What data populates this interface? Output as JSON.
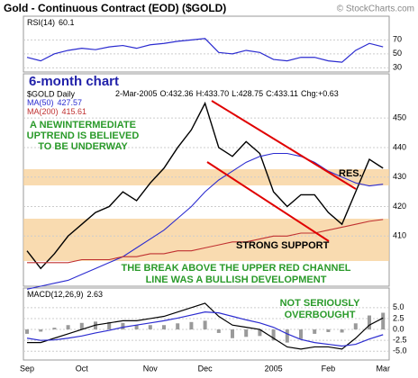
{
  "chart_data": {
    "type": "line",
    "title": "Gold - Continuous Contract (EOD) ($GOLD)",
    "watermark": "© StockCharts.com",
    "subtitle": "6-month chart",
    "categories": [
      "Sep",
      null,
      null,
      null,
      "Oct",
      null,
      null,
      null,
      null,
      "Nov",
      null,
      null,
      null,
      "Dec",
      null,
      null,
      null,
      null,
      "2005",
      null,
      null,
      null,
      "Feb",
      null,
      null,
      null,
      "Mar"
    ],
    "quote": [
      "2-Mar-2005",
      "O:432.36",
      "H:433.70",
      "L:428.75",
      "C:433.11",
      "Chg:+0.63"
    ],
    "price_panel": {
      "ylim": [
        393,
        465
      ],
      "yticks": [
        410,
        420,
        430,
        440,
        450
      ],
      "series": [
        {
          "name": "$GOLD Daily",
          "color": "#000000",
          "values": [
            405,
            399,
            404,
            410,
            414,
            418,
            420,
            425,
            422,
            428,
            433,
            440,
            446,
            455,
            440,
            437,
            442,
            438,
            425,
            420,
            424,
            424,
            418,
            414,
            425,
            436,
            433
          ]
        },
        {
          "name": "MA(50)",
          "color": "#2b2bd0",
          "values": [
            392,
            393,
            394,
            395,
            397,
            399,
            401,
            403,
            406,
            409,
            412,
            416,
            420,
            425,
            429,
            432,
            435,
            437,
            438,
            438,
            437,
            435,
            432,
            430,
            428,
            427,
            427.57
          ]
        },
        {
          "name": "MA(200)",
          "color": "#c03030",
          "values": [
            401,
            401,
            401,
            401,
            402,
            402,
            402,
            403,
            403,
            404,
            404,
            405,
            405,
            406,
            407,
            408,
            408,
            409,
            410,
            410,
            411,
            411,
            412,
            413,
            414,
            415,
            415.61
          ]
        }
      ]
    },
    "rsi_panel": {
      "name": "RSI(14)",
      "color": "#2b2bd0",
      "ylim": [
        24,
        104
      ],
      "yticks": [
        30,
        50,
        70
      ],
      "values": [
        45,
        40,
        50,
        55,
        58,
        56,
        60,
        62,
        58,
        63,
        65,
        68,
        70,
        72,
        52,
        50,
        55,
        52,
        42,
        40,
        45,
        45,
        40,
        38,
        55,
        65,
        60.1
      ]
    },
    "macd_panel": {
      "name": "MACD(12,26,9)",
      "ylim": [
        -7,
        9.5
      ],
      "yticks": [
        {
          "value": -5,
          "label": "-5.0"
        },
        {
          "value": -2.5,
          "label": "-2.5"
        },
        {
          "value": 0,
          "label": "0.0"
        },
        {
          "value": 2.5,
          "label": "2.5"
        },
        {
          "value": 5,
          "label": "5.0"
        }
      ],
      "series": [
        {
          "color": "#000000",
          "values": [
            -3,
            -3,
            -2,
            -1,
            0,
            1,
            1.5,
            2,
            2,
            2.5,
            3,
            4,
            5,
            6,
            3,
            1,
            0.5,
            0,
            -2,
            -4,
            -4.5,
            -4,
            -4,
            -4.5,
            -2,
            1,
            2.63
          ]
        },
        {
          "color": "#2b2bd0",
          "values": [
            -2,
            -2.5,
            -2.4,
            -2,
            -1.5,
            -0.8,
            -0.2,
            0.5,
            1,
            1.5,
            2,
            2.6,
            3.3,
            4,
            3.8,
            3,
            2.2,
            1.5,
            0.5,
            -1,
            -2.3,
            -3,
            -3.4,
            -3.8,
            -3.4,
            -2.2,
            -1.2
          ]
        }
      ],
      "histogram_color": "#9a9a9a",
      "histogram": [
        -1,
        -0.5,
        0.4,
        1,
        1.5,
        1.8,
        1.7,
        1.5,
        1,
        1,
        1,
        1.4,
        1.7,
        2,
        -0.8,
        -2,
        -1.7,
        -1.5,
        -2.5,
        -3,
        -2.2,
        -1,
        -0.6,
        -0.7,
        1.4,
        3.2,
        3.83
      ]
    },
    "annotations": [
      [
        "A NEWINTERMEDIATE",
        "UPTREND IS BELIEVED",
        "TO BE UNDERWAY"
      ],
      [
        "RES."
      ],
      [
        "STRONG SUPPORT"
      ],
      [
        "THE BREAK ABOVE THE UPPER RED CHANNEL",
        "LINE WAS A BULLISH DEVELOPMENT"
      ],
      [
        "NOT SERIOUSLY",
        "OVERBOUGHT"
      ]
    ]
  }
}
